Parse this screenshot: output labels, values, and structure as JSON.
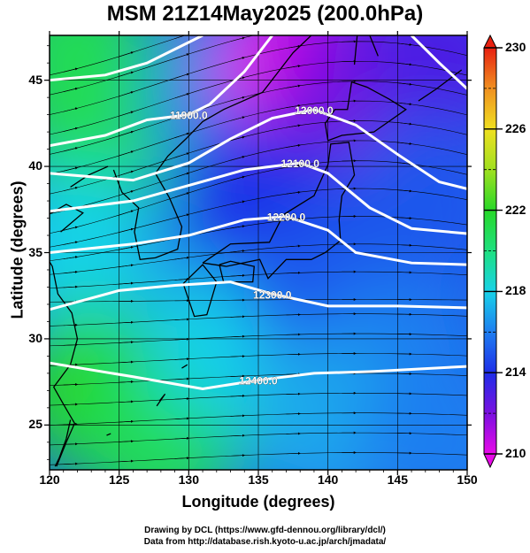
{
  "title": "MSM 21Z14May2025 (200.0hPa)",
  "xlabel": "Longitude (degrees)",
  "ylabel": "Latitude  (degrees)",
  "credits": [
    "Drawing by DCL (https://www.gfd-dennou.org/library/dcl/)",
    "Data from http://database.rish.kyoto-u.ac.jp/arch/jmadata/"
  ],
  "chart_data": {
    "type": "heatmap",
    "title": "MSM 21Z14May2025 (200.0hPa)",
    "xlabel": "Longitude (degrees)",
    "ylabel": "Latitude  (degrees)",
    "xlim": [
      120,
      150
    ],
    "ylim": [
      22.4,
      47.6
    ],
    "x_ticks": [
      120,
      125,
      130,
      135,
      140,
      145,
      150
    ],
    "y_ticks": [
      25,
      30,
      35,
      40,
      45
    ],
    "grid": true,
    "colorbar": {
      "range": [
        210,
        230
      ],
      "labeled_ticks": [
        210,
        214,
        218,
        222,
        226,
        230
      ],
      "colors": [
        "#e80ae8",
        "#7a10e0",
        "#1e2ee8",
        "#1e7ef0",
        "#18d2e8",
        "#1ee080",
        "#28d828",
        "#a0e020",
        "#f0e020",
        "#f09020",
        "#e82010"
      ]
    },
    "contours": [
      {
        "label": "11900.0",
        "points": [
          [
            120,
            41.2
          ],
          [
            124,
            41.8
          ],
          [
            127,
            42.7
          ],
          [
            130,
            43.0
          ],
          [
            131.5,
            43.6
          ],
          [
            134,
            45.5
          ],
          [
            136,
            47.6
          ]
        ]
      },
      {
        "label": "12000.0",
        "points": [
          [
            120,
            39.6
          ],
          [
            126,
            39.2
          ],
          [
            130,
            40.2
          ],
          [
            133,
            41.6
          ],
          [
            136,
            42.8
          ],
          [
            139,
            43.3
          ],
          [
            142,
            42.4
          ],
          [
            145,
            40.7
          ],
          [
            148,
            39.1
          ],
          [
            150,
            38.7
          ]
        ]
      },
      {
        "label": "12100.0",
        "points": [
          [
            120,
            37.4
          ],
          [
            126,
            38.0
          ],
          [
            130,
            38.9
          ],
          [
            134,
            39.8
          ],
          [
            138,
            40.2
          ],
          [
            140,
            39.6
          ],
          [
            143,
            37.6
          ],
          [
            146,
            36.4
          ],
          [
            150,
            36.1
          ]
        ]
      },
      {
        "label": "12200.0",
        "points": [
          [
            120,
            35.0
          ],
          [
            126,
            35.5
          ],
          [
            130,
            36.0
          ],
          [
            134,
            36.9
          ],
          [
            137,
            37.1
          ],
          [
            140,
            36.3
          ],
          [
            142,
            35.0
          ],
          [
            146,
            34.4
          ],
          [
            150,
            34.3
          ]
        ]
      },
      {
        "label": "12300.0",
        "points": [
          [
            120,
            31.7
          ],
          [
            125,
            32.8
          ],
          [
            129,
            33.1
          ],
          [
            133,
            33.3
          ],
          [
            136,
            32.6
          ],
          [
            140,
            31.9
          ],
          [
            145,
            31.9
          ],
          [
            150,
            31.8
          ]
        ]
      },
      {
        "label": "12400.0",
        "points": [
          [
            120,
            28.6
          ],
          [
            126,
            27.8
          ],
          [
            131,
            27.1
          ],
          [
            135,
            27.6
          ],
          [
            139,
            28.0
          ],
          [
            143,
            28.1
          ],
          [
            150,
            28.4
          ]
        ]
      },
      {
        "label": "",
        "points": [
          [
            120,
            45.0
          ],
          [
            124,
            45.3
          ],
          [
            127,
            46.0
          ],
          [
            131,
            47.6
          ]
        ]
      },
      {
        "label": "",
        "points": [
          [
            146,
            47.6
          ],
          [
            148,
            46.0
          ],
          [
            150,
            44.5
          ]
        ]
      }
    ],
    "temperature_regions": [
      {
        "lon": 122,
        "lat": 46.5,
        "value": 221
      },
      {
        "lon": 123,
        "lat": 41,
        "value": 221
      },
      {
        "lon": 122,
        "lat": 35,
        "value": 218
      },
      {
        "lon": 123,
        "lat": 27,
        "value": 222
      },
      {
        "lon": 128,
        "lat": 24,
        "value": 221
      },
      {
        "lon": 133,
        "lat": 30,
        "value": 218
      },
      {
        "lon": 133,
        "lat": 44,
        "value": 216
      },
      {
        "lon": 138,
        "lat": 46,
        "value": 210
      },
      {
        "lon": 142,
        "lat": 45,
        "value": 212
      },
      {
        "lon": 148,
        "lat": 46,
        "value": 213
      },
      {
        "lon": 135,
        "lat": 38,
        "value": 214
      },
      {
        "lon": 147,
        "lat": 38,
        "value": 215
      },
      {
        "lon": 140,
        "lat": 33,
        "value": 215
      },
      {
        "lon": 145,
        "lat": 29,
        "value": 216
      },
      {
        "lon": 140,
        "lat": 25,
        "value": 217
      },
      {
        "lon": 148,
        "lat": 24,
        "value": 216
      }
    ],
    "wind_streamlines": "westerly flow, meandering along the geopotential height contours"
  }
}
